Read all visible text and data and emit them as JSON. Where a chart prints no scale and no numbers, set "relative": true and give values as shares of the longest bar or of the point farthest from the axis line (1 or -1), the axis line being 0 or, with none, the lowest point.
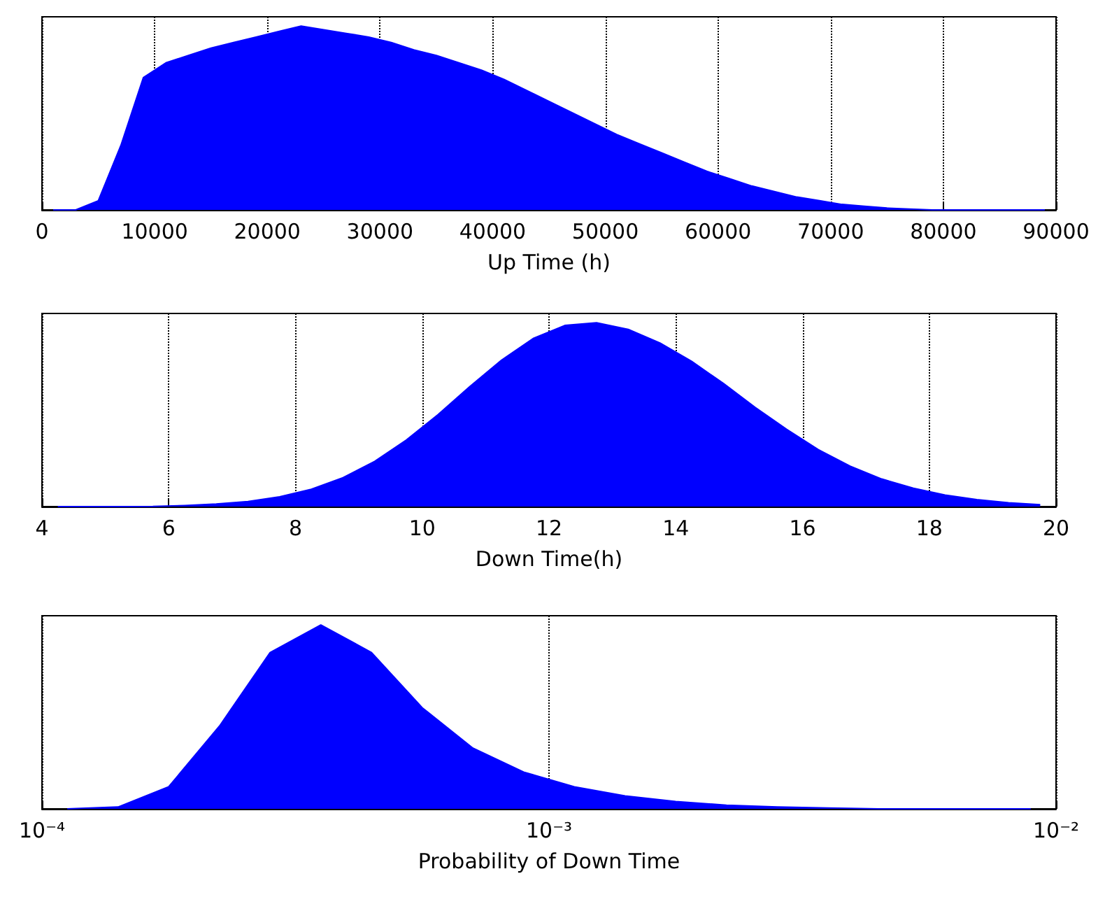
{
  "chart_data": [
    {
      "type": "area",
      "xlabel": "Up Time (h)",
      "relative": true,
      "color": "#0000ff",
      "grid": "x",
      "tick_labels": "x",
      "x": [
        1000,
        3000,
        5000,
        7000,
        9000,
        11000,
        13000,
        15000,
        17000,
        19000,
        21000,
        23000,
        25000,
        27000,
        29000,
        31000,
        33000,
        35000,
        37000,
        39000,
        41000,
        43000,
        45000,
        47000,
        49000,
        51000,
        53000,
        55000,
        57000,
        59000,
        61000,
        63000,
        65000,
        67000,
        69000,
        71000,
        73000,
        75000,
        77000,
        79000,
        81000,
        83000,
        85000,
        87000,
        89000
      ],
      "values": [
        0,
        0,
        0.05,
        0.35,
        0.72,
        0.8,
        0.84,
        0.88,
        0.91,
        0.94,
        0.97,
        1.0,
        0.98,
        0.96,
        0.94,
        0.91,
        0.87,
        0.84,
        0.8,
        0.76,
        0.71,
        0.65,
        0.59,
        0.53,
        0.47,
        0.41,
        0.36,
        0.31,
        0.26,
        0.21,
        0.17,
        0.13,
        0.1,
        0.07,
        0.05,
        0.03,
        0.02,
        0.01,
        0.005,
        0,
        0,
        0,
        0,
        0,
        0
      ],
      "xlim": [
        0,
        90000
      ],
      "xticks": [
        0,
        10000,
        20000,
        30000,
        40000,
        50000,
        60000,
        70000,
        80000,
        90000
      ]
    },
    {
      "type": "area",
      "xlabel": "Down Time(h)",
      "relative": true,
      "color": "#0000ff",
      "grid": "x",
      "tick_labels": "x",
      "x": [
        4.25,
        4.75,
        5.25,
        5.75,
        6.25,
        6.75,
        7.25,
        7.75,
        8.25,
        8.75,
        9.25,
        9.75,
        10.25,
        10.75,
        11.25,
        11.75,
        12.25,
        12.75,
        13.25,
        13.75,
        14.25,
        14.75,
        15.25,
        15.75,
        16.25,
        16.75,
        17.25,
        17.75,
        18.25,
        18.75,
        19.25,
        19.75
      ],
      "values": [
        0,
        0,
        0,
        0.001,
        0.006,
        0.014,
        0.028,
        0.053,
        0.094,
        0.157,
        0.246,
        0.362,
        0.5,
        0.652,
        0.796,
        0.914,
        0.985,
        1.0,
        0.964,
        0.89,
        0.79,
        0.67,
        0.54,
        0.42,
        0.31,
        0.22,
        0.15,
        0.1,
        0.063,
        0.038,
        0.021,
        0.01
      ],
      "xlim": [
        4,
        20
      ],
      "xticks": [
        4,
        6,
        8,
        10,
        12,
        14,
        16,
        18,
        20
      ]
    },
    {
      "type": "area",
      "xlabel": "Probability of Down Time",
      "relative": true,
      "color": "#0000ff",
      "grid": "x",
      "tick_labels": "x",
      "log": "x",
      "x": [
        0.0001122,
        0.0001413,
        0.0001778,
        0.0002239,
        0.0002818,
        0.0003548,
        0.0004467,
        0.0005623,
        0.0007079,
        0.0008913,
        0.001122,
        0.001413,
        0.001778,
        0.002239,
        0.002818,
        0.003548,
        0.004467,
        0.005623,
        0.007079,
        0.008913
      ],
      "values": [
        0,
        0.01,
        0.12,
        0.45,
        0.85,
        1.0,
        0.85,
        0.55,
        0.33,
        0.2,
        0.12,
        0.07,
        0.04,
        0.02,
        0.01,
        0.005,
        0,
        0,
        0,
        0
      ],
      "xlim": [
        0.0001,
        0.01
      ],
      "xticks": [
        {
          "value": 0.0001,
          "label": "10⁻⁴"
        },
        {
          "value": 0.001,
          "label": "10⁻³"
        },
        {
          "value": 0.01,
          "label": "10⁻²"
        }
      ]
    }
  ]
}
